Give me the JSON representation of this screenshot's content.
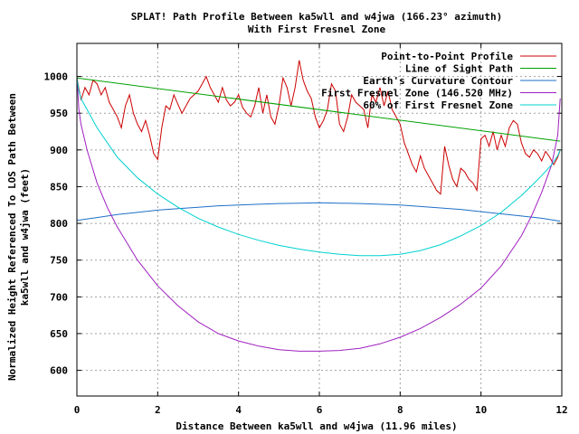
{
  "chart_data": {
    "type": "line",
    "title": "SPLAT! Path Profile Between ka5wll and w4jwa (166.23° azimuth)",
    "subtitle": "With First Fresnel Zone",
    "xlabel": "Distance Between ka5wll and w4jwa (11.96 miles)",
    "ylabel_line1": "Normalized Height Referenced To LOS Path Between",
    "ylabel_line2": "ka5wll and w4jwa (feet)",
    "xlim": [
      0,
      12
    ],
    "ylim": [
      565,
      1045
    ],
    "x_ticks": [
      {
        "value": 0,
        "label": "0"
      },
      {
        "value": 2,
        "label": "2"
      },
      {
        "value": 4,
        "label": "4"
      },
      {
        "value": 6,
        "label": "6"
      },
      {
        "value": 8,
        "label": "8"
      },
      {
        "value": 10,
        "label": "10"
      },
      {
        "value": 12,
        "label": "12"
      }
    ],
    "y_ticks": [
      {
        "value": 600,
        "label": "600"
      },
      {
        "value": 650,
        "label": "650"
      },
      {
        "value": 700,
        "label": "700"
      },
      {
        "value": 750,
        "label": "750"
      },
      {
        "value": 800,
        "label": "800"
      },
      {
        "value": 850,
        "label": "850"
      },
      {
        "value": 900,
        "label": "900"
      },
      {
        "value": 950,
        "label": "950"
      },
      {
        "value": 1000,
        "label": "1000"
      }
    ],
    "grid": true,
    "legend_position": "top-right",
    "series": [
      {
        "name": "Point-to-Point Profile",
        "color": "#cc0000",
        "x": [
          0,
          0.1,
          0.2,
          0.3,
          0.4,
          0.5,
          0.6,
          0.7,
          0.8,
          0.9,
          1.0,
          1.1,
          1.2,
          1.3,
          1.4,
          1.5,
          1.6,
          1.7,
          1.8,
          1.9,
          2.0,
          2.1,
          2.2,
          2.3,
          2.4,
          2.5,
          2.6,
          2.7,
          2.8,
          2.9,
          3.0,
          3.1,
          3.2,
          3.3,
          3.4,
          3.5,
          3.6,
          3.7,
          3.8,
          3.9,
          4.0,
          4.1,
          4.2,
          4.3,
          4.4,
          4.5,
          4.6,
          4.7,
          4.8,
          4.9,
          5.0,
          5.1,
          5.2,
          5.3,
          5.4,
          5.5,
          5.6,
          5.7,
          5.8,
          5.9,
          6.0,
          6.1,
          6.2,
          6.3,
          6.4,
          6.5,
          6.6,
          6.7,
          6.8,
          6.9,
          7.0,
          7.1,
          7.2,
          7.3,
          7.4,
          7.5,
          7.6,
          7.7,
          7.8,
          7.9,
          8.0,
          8.1,
          8.2,
          8.3,
          8.4,
          8.5,
          8.6,
          8.7,
          8.8,
          8.9,
          9.0,
          9.1,
          9.2,
          9.3,
          9.4,
          9.5,
          9.6,
          9.7,
          9.8,
          9.9,
          10.0,
          10.1,
          10.2,
          10.3,
          10.4,
          10.5,
          10.6,
          10.7,
          10.8,
          10.9,
          11.0,
          11.1,
          11.2,
          11.3,
          11.4,
          11.5,
          11.6,
          11.7,
          11.8,
          11.9,
          11.96
        ],
        "y": [
          998,
          968,
          985,
          975,
          995,
          990,
          975,
          985,
          965,
          955,
          945,
          930,
          960,
          975,
          950,
          935,
          925,
          940,
          920,
          895,
          887,
          930,
          960,
          955,
          975,
          962,
          950,
          960,
          970,
          975,
          980,
          990,
          1000,
          985,
          975,
          965,
          985,
          968,
          960,
          965,
          975,
          958,
          950,
          945,
          960,
          985,
          950,
          975,
          945,
          935,
          960,
          998,
          985,
          960,
          985,
          1022,
          995,
          980,
          970,
          945,
          930,
          940,
          955,
          990,
          980,
          935,
          925,
          945,
          975,
          965,
          960,
          955,
          930,
          975,
          965,
          985,
          960,
          980,
          955,
          945,
          935,
          910,
          895,
          880,
          870,
          892,
          875,
          865,
          855,
          845,
          840,
          905,
          880,
          860,
          850,
          875,
          870,
          860,
          855,
          845,
          915,
          920,
          905,
          925,
          900,
          920,
          905,
          930,
          940,
          935,
          910,
          895,
          890,
          900,
          895,
          885,
          898,
          890,
          880,
          890,
          900
        ]
      },
      {
        "name": "Line of Sight Path",
        "color": "#00a000",
        "x": [
          0,
          11.96
        ],
        "y": [
          998,
          912
        ]
      },
      {
        "name": "Earth's Curvature Contour",
        "color": "#1e6fc8",
        "x": [
          0,
          0.5,
          1,
          1.5,
          2,
          2.5,
          3,
          3.5,
          4,
          4.5,
          5,
          5.5,
          6,
          6.5,
          7,
          7.5,
          8,
          8.5,
          9,
          9.5,
          10,
          10.5,
          11,
          11.5,
          11.96
        ],
        "y": [
          804,
          808,
          812,
          815,
          818,
          820,
          822,
          824,
          825,
          826,
          827,
          827.5,
          828,
          827.5,
          827,
          826,
          825,
          823,
          821,
          819,
          816,
          813,
          810,
          807,
          803
        ]
      },
      {
        "name": "First Fresnel Zone (146.520 MHz)",
        "color": "#a020c0",
        "x": [
          0,
          0.05,
          0.1,
          0.25,
          0.5,
          0.75,
          1,
          1.5,
          2,
          2.5,
          3,
          3.5,
          4,
          4.5,
          5,
          5.5,
          6,
          6.5,
          7,
          7.5,
          8,
          8.5,
          9,
          9.5,
          10,
          10.5,
          11,
          11.25,
          11.5,
          11.75,
          11.9,
          11.96
        ],
        "y": [
          1000,
          955,
          935,
          900,
          855,
          822,
          795,
          750,
          715,
          688,
          666,
          650,
          640,
          633,
          628,
          626,
          626,
          627,
          630,
          636,
          645,
          657,
          672,
          690,
          712,
          742,
          783,
          810,
          842,
          880,
          920,
          970
        ]
      },
      {
        "name": "60% of First Fresnel Zone",
        "color": "#00d0d0",
        "x": [
          0,
          0.05,
          0.1,
          0.25,
          0.5,
          0.75,
          1,
          1.5,
          2,
          2.5,
          3,
          3.5,
          4,
          4.5,
          5,
          5.5,
          6,
          6.5,
          7,
          7.5,
          8,
          8.5,
          9,
          9.5,
          10,
          10.5,
          11,
          11.25,
          11.5,
          11.75,
          11.9,
          11.96
        ],
        "y": [
          998,
          980,
          970,
          955,
          930,
          910,
          890,
          862,
          840,
          822,
          807,
          795,
          785,
          777,
          770,
          765,
          761,
          758,
          756,
          756,
          758,
          763,
          771,
          783,
          797,
          815,
          838,
          851,
          865,
          880,
          892,
          900
        ]
      }
    ]
  }
}
